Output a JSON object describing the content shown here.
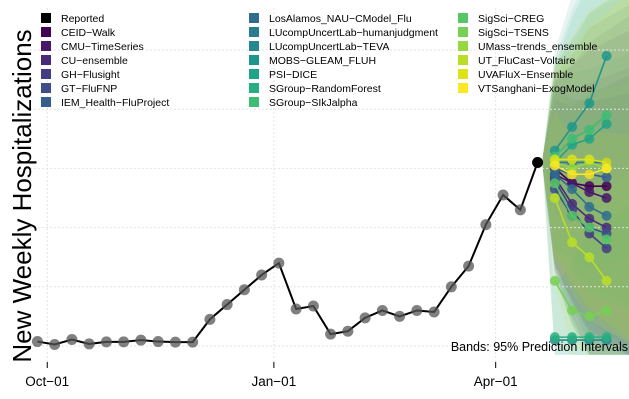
{
  "chart_data": {
    "type": "line",
    "title": "",
    "ylabel": "New Weekly Hospitalizations",
    "xlabel": "",
    "annotation": "Bands: 95% Prediction Intervals",
    "x_ticks": [
      {
        "label": "Oct−01",
        "week": 0.57
      },
      {
        "label": "Jan−01",
        "week": 13.71
      },
      {
        "label": "Apr−01",
        "week": 26.57
      }
    ],
    "x_range": [
      -0.43,
      34.3
    ],
    "y_range": [
      0,
      100
    ],
    "grid": true,
    "reported": {
      "name": "Reported",
      "weeks": [
        0,
        1,
        2,
        3,
        4,
        5,
        6,
        7,
        8,
        9,
        10,
        11,
        12,
        13,
        14,
        15,
        16,
        17,
        18,
        19,
        20,
        21,
        22,
        23,
        24,
        25,
        26,
        27,
        28,
        29
      ],
      "values": [
        1.5,
        0.5,
        2.2,
        0.7,
        1.4,
        1.4,
        2.0,
        1.5,
        1.3,
        1.3,
        9.0,
        14.0,
        19.0,
        24.0,
        28.0,
        12.5,
        13.5,
        4.0,
        5.0,
        9.5,
        12.0,
        10.0,
        12.0,
        11.5,
        20.0,
        27.0,
        41.0,
        51.0,
        46.0,
        62.0
      ]
    },
    "forecast_weeks": [
      30,
      31,
      32,
      33
    ],
    "forecasts": [
      {
        "name": "CEID−Walk",
        "color": "#440154",
        "values": [
          60,
          55,
          54,
          54
        ]
      },
      {
        "name": "CMU−TimeSeries",
        "color": "#481769",
        "values": [
          58,
          55,
          52,
          50
        ]
      },
      {
        "name": "CU−ensemble",
        "color": "#472a7a",
        "values": [
          57,
          48,
          43,
          40
        ]
      },
      {
        "name": "GH−Flusight",
        "color": "#433d84",
        "values": [
          56,
          46,
          38,
          33
        ]
      },
      {
        "name": "GT−FluFNP",
        "color": "#3d4e8a",
        "values": [
          53,
          44,
          40,
          38
        ]
      },
      {
        "name": "IEM_Health−FluProject",
        "color": "#355e8d",
        "values": [
          60,
          58,
          58,
          57
        ]
      },
      {
        "name": "LosAlamos_NAU−CModel_Flu",
        "color": "#2e6d8e",
        "values": [
          58,
          53,
          47,
          44
        ]
      },
      {
        "name": "LUcompUncertLab−humanjudgment",
        "color": "#297b8e",
        "values": [
          62,
          62,
          62,
          62
        ]
      },
      {
        "name": "LUcompUncertLab−TEVA",
        "color": "#23898e",
        "values": [
          2,
          2,
          2,
          2
        ]
      },
      {
        "name": "MOBS−GLEAM_FLUH",
        "color": "#1f968b",
        "values": [
          66,
          74,
          82,
          98
        ]
      },
      {
        "name": "PSI−DICE",
        "color": "#20a386",
        "values": [
          62,
          68,
          70,
          75
        ]
      },
      {
        "name": "SGroup−RandomForest",
        "color": "#29af7f",
        "values": [
          3,
          3,
          3,
          3
        ]
      },
      {
        "name": "SGroup−SIkJalpha",
        "color": "#3dbc74",
        "values": [
          64,
          70,
          73,
          78
        ]
      },
      {
        "name": "SigSci−CREG",
        "color": "#56c667",
        "values": [
          55,
          44,
          40,
          36
        ]
      },
      {
        "name": "SigSci−TSENS",
        "color": "#75d054",
        "values": [
          22,
          12,
          10,
          12
        ]
      },
      {
        "name": "UMass−trends_ensemble",
        "color": "#95d840",
        "values": [
          62,
          60,
          62,
          60
        ]
      },
      {
        "name": "UT_FluCast−Voltaire",
        "color": "#bade28",
        "values": [
          50,
          35,
          30,
          22
        ]
      },
      {
        "name": "UVAFluX−Ensemble",
        "color": "#dde318",
        "values": [
          63,
          63,
          63,
          62
        ]
      },
      {
        "name": "VTSanghani−ExogModel",
        "color": "#fde725",
        "values": [
          61,
          58,
          58,
          60
        ]
      }
    ]
  }
}
